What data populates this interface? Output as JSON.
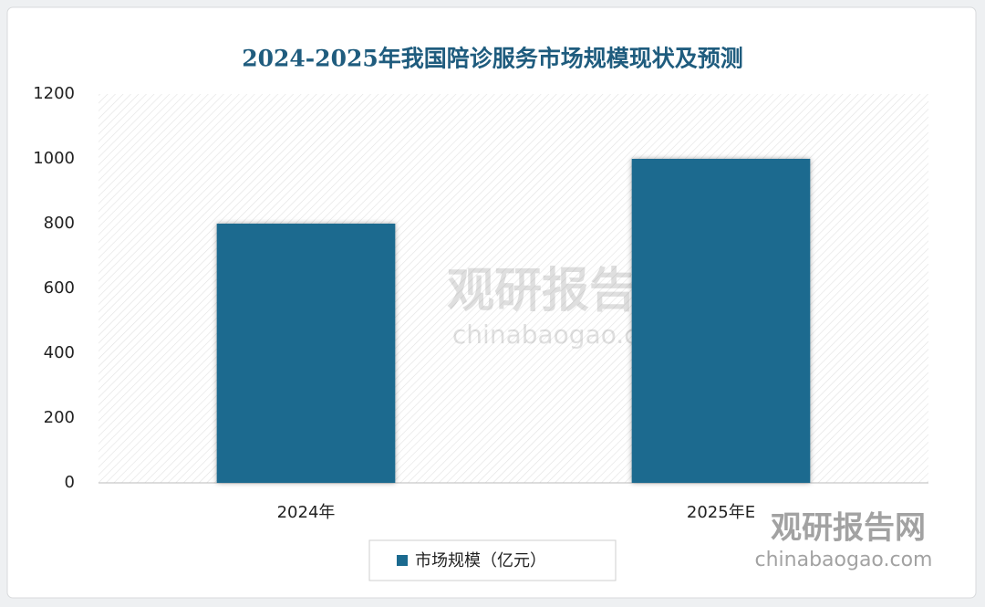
{
  "chart_data": {
    "type": "bar",
    "title": "2024-2025年我国陪诊服务市场规模现状及预测",
    "categories": [
      "2024年",
      "2025年E"
    ],
    "series": [
      {
        "name": "市场规模（亿元）",
        "color": "#1b6a8f",
        "values": [
          800,
          1000
        ]
      }
    ],
    "ylim": [
      0,
      1200
    ],
    "yticks": [
      0,
      200,
      400,
      600,
      800,
      1000,
      1200
    ],
    "grid": false,
    "legend": "bottom",
    "watermark": {
      "name": "观研报告网",
      "url": "chinabaogao.com"
    }
  }
}
